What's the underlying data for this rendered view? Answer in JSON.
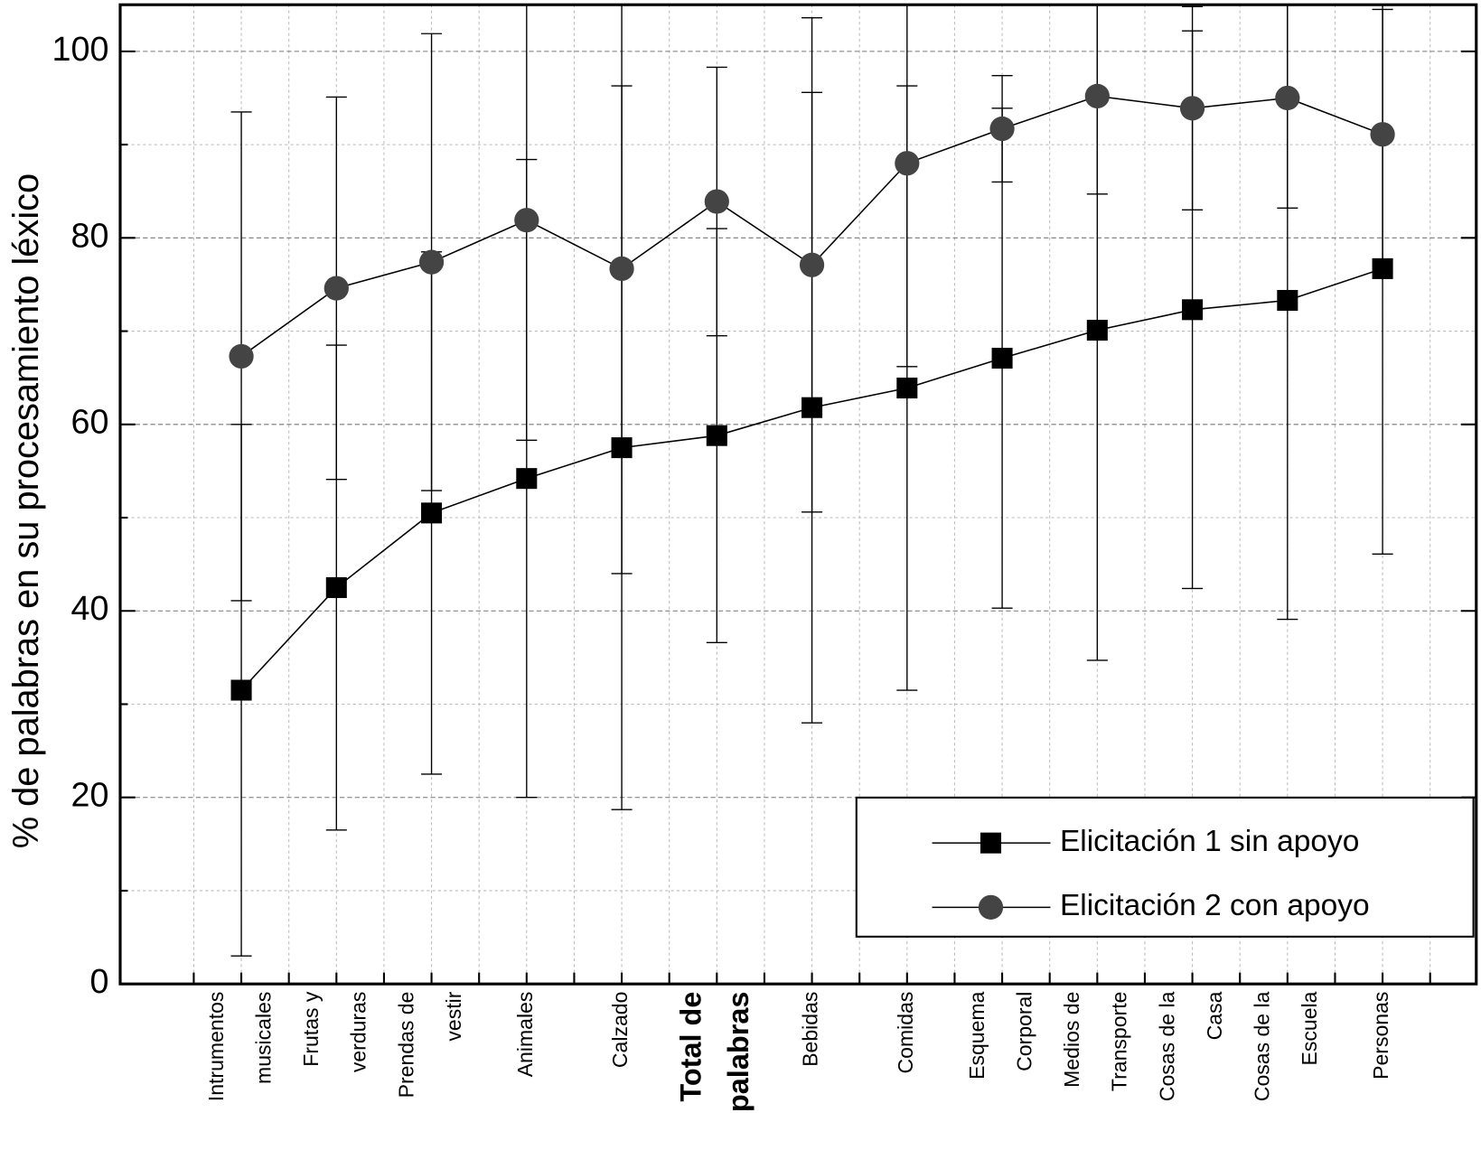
{
  "chart_data": {
    "type": "line",
    "y_label": "% de palabras en su procesamiento léxico",
    "categories": [
      [
        "Intrumentos",
        "musicales"
      ],
      [
        "Frutas y",
        "verduras"
      ],
      [
        "Prendas de",
        "vestir"
      ],
      [
        "Animales"
      ],
      [
        "Calzado"
      ],
      [
        "Total de",
        "palabras"
      ],
      [
        "Bebidas"
      ],
      [
        "Comidas"
      ],
      [
        "Esquema",
        "Corporal"
      ],
      [
        "Medios de",
        "Transporte"
      ],
      [
        "Cosas de la",
        "Casa"
      ],
      [
        "Cosas de la",
        "Escuela"
      ],
      [
        "Personas"
      ]
    ],
    "emphasized_category": 5,
    "series": [
      {
        "name": "Elicitación 1 sin apoyo",
        "color": "#000000",
        "marker": "square",
        "values": [
          31.5,
          42.5,
          50.5,
          54.2,
          57.5,
          58.8,
          61.8,
          63.9,
          67.1,
          70.1,
          72.3,
          73.3,
          76.7
        ],
        "errors": [
          28.5,
          26,
          28,
          34.2,
          38.8,
          22.2,
          33.8,
          32.4,
          26.8,
          35.4,
          29.9,
          34.2,
          30.6
        ]
      },
      {
        "name": "Elicitación 2 con apoyo",
        "color": "#444444",
        "marker": "circle",
        "values": [
          67.3,
          74.6,
          77.4,
          81.9,
          76.7,
          83.9,
          77.1,
          88.0,
          91.7,
          95.2,
          93.9,
          95.0,
          91.1
        ],
        "errors": [
          26.2,
          20.5,
          24.5,
          23.6,
          32.7,
          14.4,
          26.5,
          21.8,
          5.7,
          10.5,
          10.9,
          11.8,
          13.4
        ]
      }
    ],
    "ylim": [
      0,
      105
    ],
    "yticks": [
      0,
      20,
      40,
      60,
      80,
      100
    ],
    "minor_yticks": [
      10,
      30,
      50,
      70,
      90
    ],
    "grid": true,
    "legend": "lower right"
  }
}
